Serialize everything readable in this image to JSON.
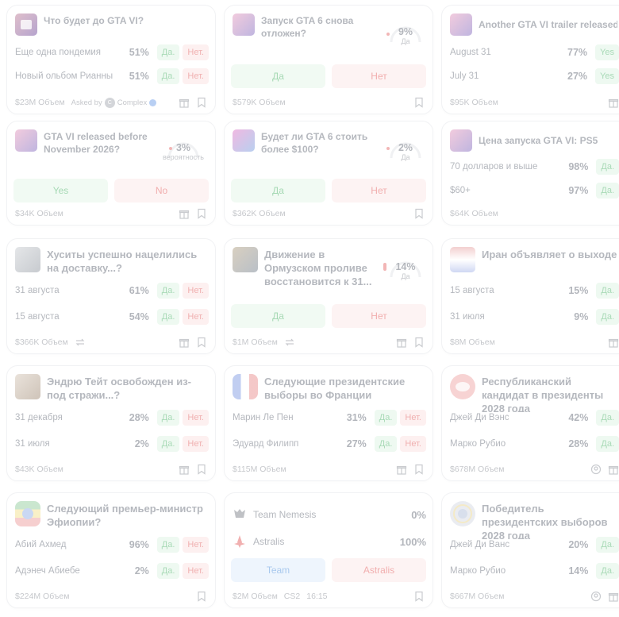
{
  "colors": {
    "yes": "#a6d9b4",
    "no": "#f1aeae",
    "blue": "#a9c9ee",
    "text": "#b5b8be",
    "muted": "#c6c8cc"
  },
  "cards": {
    "c1": {
      "title": "Что будет до GTA VI?",
      "rows": [
        {
          "label": "Еще одна пондемия",
          "pct": "51%",
          "yes": "Да.",
          "no": "Нет."
        },
        {
          "label": "Новый ольбом Рианны",
          "pct": "51%",
          "yes": "Да.",
          "no": "Нет."
        }
      ],
      "volume": "$23M Объем",
      "asked_by": "Asked by",
      "asker": "Complex",
      "icons": [
        "gift-icon",
        "bookmark-icon"
      ]
    },
    "c2": {
      "title": "Запуск GTA 6 снова отложен?",
      "gauge_value": "9%",
      "gauge_label": "Да",
      "gauge_fraction": 0.09,
      "yes": "Да",
      "no": "Нет",
      "volume": "$579K Объем"
    },
    "c3": {
      "title": "Another GTA VI trailer released by...",
      "rows": [
        {
          "label": "August 31",
          "pct": "77%",
          "yes": "Yes"
        },
        {
          "label": "July 31",
          "pct": "27%",
          "yes": "Yes"
        }
      ],
      "volume": "$95K Объем"
    },
    "c4": {
      "title": "GTA VI released before November 2026?",
      "gauge_value": "3%",
      "gauge_label": "вероятность",
      "gauge_fraction": 0.03,
      "yes": "Yes",
      "no": "No",
      "volume": "$34K Объем"
    },
    "c5": {
      "title": "Будет ли GTA 6 стоить более $100?",
      "gauge_value": "2%",
      "gauge_label": "Да",
      "gauge_fraction": 0.02,
      "yes": "Да",
      "no": "Нет",
      "volume": "$362K Объем"
    },
    "c6": {
      "title": "Цена запуска GTA VI: PS5",
      "rows": [
        {
          "label": "70 долларов и выше",
          "pct": "98%",
          "yes": "Да."
        },
        {
          "label": "$60+",
          "pct": "97%",
          "yes": "Да."
        }
      ],
      "volume": "$64K Объем"
    },
    "c7": {
      "title": "Хуситы успешно нацелились на доставку...?",
      "rows": [
        {
          "label": "31 августа",
          "pct": "61%",
          "yes": "Да.",
          "no": "Нет."
        },
        {
          "label": "15 августа",
          "pct": "54%",
          "yes": "Да.",
          "no": "Нет."
        }
      ],
      "volume": "$366K Объем"
    },
    "c8": {
      "title": "Движение в Ормузском проливе восстановится к 31...",
      "gauge_value": "14%",
      "gauge_label": "Да",
      "gauge_fraction": 0.14,
      "yes": "Да",
      "no": "Нет",
      "volume": "$1M Объем"
    },
    "c9": {
      "title": "Иран объявляет о выходе из переговоров о меморандуме о взаимопонимании...?",
      "rows": [
        {
          "label": "15 августа",
          "pct": "15%",
          "yes": "Да."
        },
        {
          "label": "31 июля",
          "pct": "9%",
          "yes": "Да."
        }
      ],
      "volume": "$8M Объем"
    },
    "c10": {
      "title": "Эндрю Тейт освобожден из-под стражи...?",
      "rows": [
        {
          "label": "31 декабря",
          "pct": "28%",
          "yes": "Да.",
          "no": "Нет."
        },
        {
          "label": "31 июля",
          "pct": "2%",
          "yes": "Да.",
          "no": "Нет."
        }
      ],
      "volume": "$43K Объем"
    },
    "c11": {
      "title": "Следующие президентские выборы во Франции",
      "rows": [
        {
          "label": "Марин Ле Пен",
          "pct": "31%",
          "yes": "Да.",
          "no": "Нет."
        },
        {
          "label": "Эдуард Филипп",
          "pct": "27%",
          "yes": "Да.",
          "no": "Нет."
        }
      ],
      "volume": "$115M Объем"
    },
    "c12": {
      "title": "Республиканский кандидат в президенты 2028 года",
      "rows": [
        {
          "label": "Джей Ди Вэнс",
          "pct": "42%",
          "yes": "Да."
        },
        {
          "label": "Марко Рубио",
          "pct": "28%",
          "yes": "Да."
        }
      ],
      "volume": "$678M Объем"
    },
    "c13": {
      "title": "Следующий премьер-министр Эфиопии?",
      "rows": [
        {
          "label": "Абий Ахмед",
          "pct": "96%",
          "yes": "Да.",
          "no": "Нет."
        },
        {
          "label": "Адэнеч Абиебе",
          "pct": "2%",
          "yes": "Да.",
          "no": "Нет."
        }
      ],
      "volume": "$224M Объем"
    },
    "c14": {
      "teams": [
        {
          "name": "Team Nemesis",
          "pct": "0%"
        },
        {
          "name": "Astralis",
          "pct": "100%"
        }
      ],
      "btn_a": "Team",
      "btn_b": "Astralis",
      "volume": "$2M Объем",
      "game": "CS2",
      "time": "16:15"
    },
    "c15": {
      "title": "Победитель президентских выборов 2028 года",
      "rows": [
        {
          "label": "Джей Ди Ванс",
          "pct": "20%",
          "yes": "Да."
        },
        {
          "label": "Марко Рубио",
          "pct": "14%",
          "yes": "Да."
        }
      ],
      "volume": "$667M Объем"
    }
  }
}
